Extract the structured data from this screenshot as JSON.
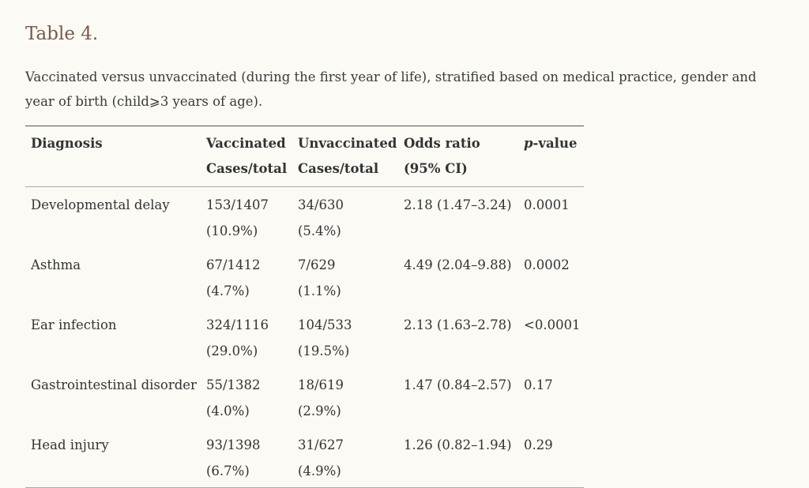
{
  "title": "Table 4.",
  "caption": "Vaccinated versus unvaccinated (during the first year of life), stratified based on medical practice, gender and year of birth (child⩾3 years of age).",
  "headers": {
    "diagnosis": "Diagnosis",
    "vaccinated_line1": "Vaccinated",
    "vaccinated_line2": "Cases/total",
    "unvaccinated_line1": "Unvaccinated",
    "unvaccinated_line2": "Cases/total",
    "odds_line1": "Odds ratio",
    "odds_line2": "(95% CI)",
    "p_italic": "p",
    "p_rest": "-value"
  },
  "rows": [
    {
      "diagnosis": "Developmental delay",
      "vacc_cases": "153/1407",
      "vacc_pct": "(10.9%)",
      "unvacc_cases": "34/630",
      "unvacc_pct": "(5.4%)",
      "odds": "2.18 (1.47–3.24)",
      "p": "0.0001"
    },
    {
      "diagnosis": "Asthma",
      "vacc_cases": "67/1412",
      "vacc_pct": "(4.7%)",
      "unvacc_cases": "7/629",
      "unvacc_pct": "(1.1%)",
      "odds": "4.49 (2.04–9.88)",
      "p": "0.0002"
    },
    {
      "diagnosis": "Ear infection",
      "vacc_cases": "324/1116",
      "vacc_pct": "(29.0%)",
      "unvacc_cases": "104/533",
      "unvacc_pct": "(19.5%)",
      "odds": "2.13 (1.63–2.78)",
      "p": "<0.0001"
    },
    {
      "diagnosis": "Gastrointestinal disorder",
      "vacc_cases": "55/1382",
      "vacc_pct": "(4.0%)",
      "unvacc_cases": "18/619",
      "unvacc_pct": "(2.9%)",
      "odds": "1.47 (0.84–2.57)",
      "p": "0.17"
    },
    {
      "diagnosis": "Head injury",
      "vacc_cases": "93/1398",
      "vacc_pct": "(6.7%)",
      "unvacc_cases": "31/627",
      "unvacc_pct": "(4.9%)",
      "odds": "1.26 (0.82–1.94)",
      "p": "0.29"
    }
  ]
}
